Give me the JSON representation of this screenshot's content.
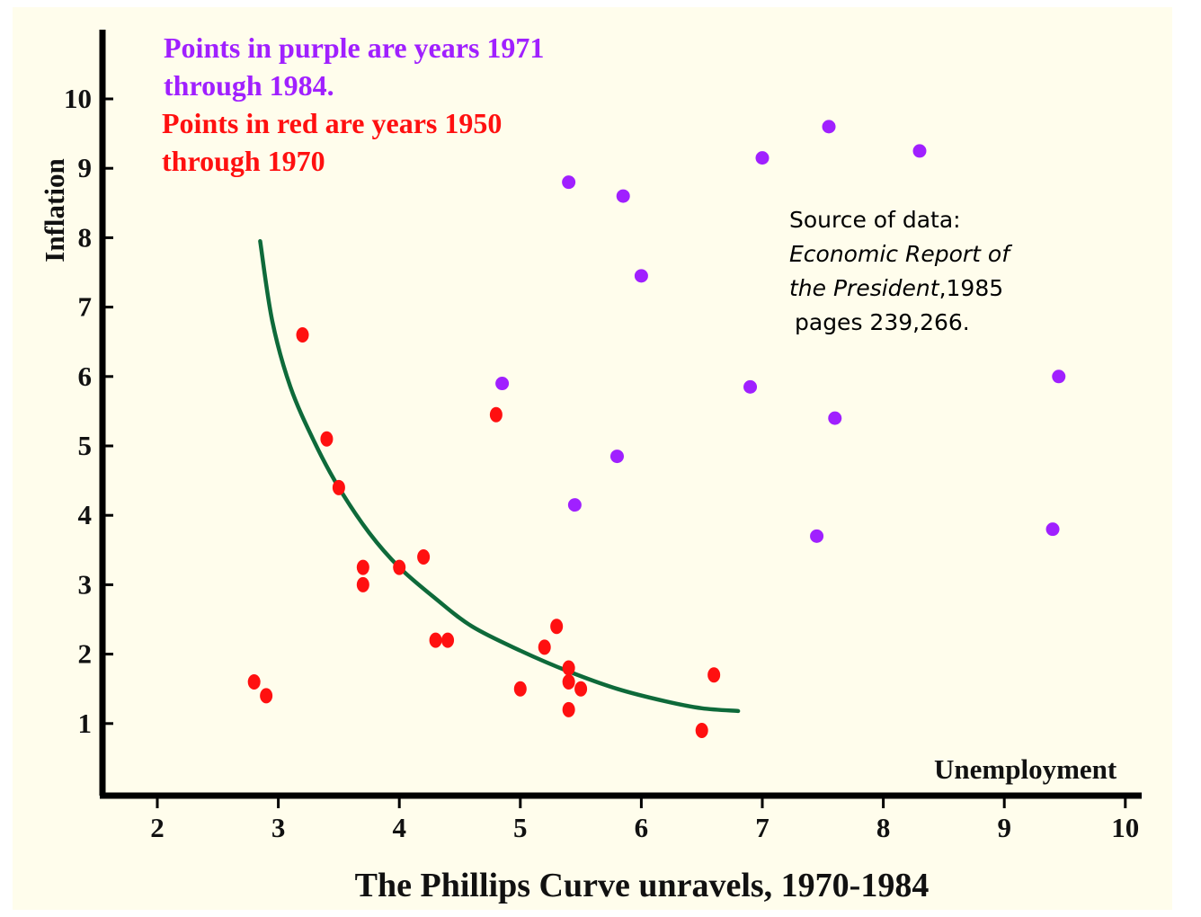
{
  "chart_data": {
    "type": "scatter",
    "title": "The Phillips Curve unravels, 1970-1984",
    "xlabel": "Unemployment",
    "ylabel": "Inflation",
    "xlim": [
      1.5,
      10.2
    ],
    "ylim": [
      0,
      10.5
    ],
    "x_ticks": [
      "2",
      "3",
      "4",
      "5",
      "6",
      "7",
      "8",
      "9",
      "10"
    ],
    "y_ticks": [
      "1",
      "2",
      "3",
      "4",
      "5",
      "6",
      "7",
      "8",
      "9",
      "10"
    ],
    "grid": false,
    "annotations": {
      "purple_note_line1": "Points in purple are years 1971",
      "purple_note_line2": "through 1984.",
      "red_note_line1": "Points in red are years 1950",
      "red_note_line2": "through 1970",
      "source_line1": "Source of data:",
      "source_line2": "Economic Report of",
      "source_line3_italic": "the President",
      "source_line3_rest": ",1985",
      "source_line4": "pages 239,266."
    },
    "series": [
      {
        "color": "#ff1010",
        "points": [
          [
            2.8,
            1.6
          ],
          [
            2.9,
            1.4
          ],
          [
            3.2,
            6.6
          ],
          [
            3.4,
            5.1
          ],
          [
            3.5,
            4.4
          ],
          [
            3.7,
            3.25
          ],
          [
            3.7,
            3.0
          ],
          [
            4.0,
            3.25
          ],
          [
            4.2,
            3.4
          ],
          [
            4.3,
            2.2
          ],
          [
            4.4,
            2.2
          ],
          [
            4.8,
            5.45
          ],
          [
            5.0,
            1.5
          ],
          [
            5.2,
            2.1
          ],
          [
            5.3,
            2.4
          ],
          [
            5.4,
            1.8
          ],
          [
            5.4,
            1.6
          ],
          [
            5.4,
            1.2
          ],
          [
            5.5,
            1.5
          ],
          [
            6.5,
            0.9
          ],
          [
            6.6,
            1.7
          ]
        ]
      },
      {
        "color": "#a020ff",
        "points": [
          [
            4.85,
            5.9
          ],
          [
            5.4,
            8.8
          ],
          [
            5.45,
            4.15
          ],
          [
            5.8,
            4.85
          ],
          [
            5.85,
            8.6
          ],
          [
            6.0,
            7.45
          ],
          [
            6.9,
            5.85
          ],
          [
            7.0,
            9.15
          ],
          [
            7.45,
            3.7
          ],
          [
            7.55,
            9.6
          ],
          [
            7.6,
            5.4
          ],
          [
            8.3,
            9.25
          ],
          [
            9.4,
            3.8
          ],
          [
            9.45,
            6.0
          ]
        ]
      }
    ],
    "trend_curve": {
      "color": "#0e6a3a",
      "points": [
        [
          2.85,
          7.95
        ],
        [
          2.95,
          6.8
        ],
        [
          3.1,
          5.85
        ],
        [
          3.3,
          5.05
        ],
        [
          3.5,
          4.4
        ],
        [
          3.75,
          3.75
        ],
        [
          4.0,
          3.25
        ],
        [
          4.3,
          2.8
        ],
        [
          4.6,
          2.4
        ],
        [
          5.0,
          2.05
        ],
        [
          5.4,
          1.75
        ],
        [
          5.8,
          1.5
        ],
        [
          6.2,
          1.32
        ],
        [
          6.5,
          1.22
        ],
        [
          6.8,
          1.18
        ]
      ]
    }
  }
}
